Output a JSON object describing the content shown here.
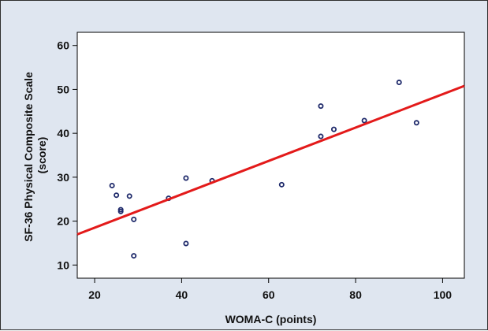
{
  "chart_data": {
    "type": "scatter",
    "title": "",
    "xlabel": "WOMA-C (points)",
    "ylabel_lines": [
      "SF-36 Physical Composite Scale",
      "(score)"
    ],
    "xlim": [
      16,
      105
    ],
    "ylim": [
      7,
      63
    ],
    "x_ticks": [
      20,
      40,
      60,
      80,
      100
    ],
    "y_ticks": [
      10,
      20,
      30,
      40,
      50,
      60
    ],
    "grid": false,
    "points": [
      {
        "x": 24,
        "y": 28.1
      },
      {
        "x": 25,
        "y": 25.9
      },
      {
        "x": 26,
        "y": 22.6
      },
      {
        "x": 26,
        "y": 22.2
      },
      {
        "x": 28,
        "y": 25.7
      },
      {
        "x": 29,
        "y": 20.4
      },
      {
        "x": 29,
        "y": 12.1
      },
      {
        "x": 37,
        "y": 25.2
      },
      {
        "x": 41,
        "y": 29.8
      },
      {
        "x": 41,
        "y": 14.9
      },
      {
        "x": 47,
        "y": 29.2
      },
      {
        "x": 63,
        "y": 28.3
      },
      {
        "x": 72,
        "y": 46.2
      },
      {
        "x": 72,
        "y": 39.3
      },
      {
        "x": 75,
        "y": 40.9
      },
      {
        "x": 82,
        "y": 42.9
      },
      {
        "x": 90,
        "y": 51.6
      },
      {
        "x": 94,
        "y": 42.4
      }
    ],
    "fit_line": {
      "slope": 0.38,
      "intercept": 10.9
    }
  },
  "colors": {
    "background": "#dfe6f0",
    "plot_background": "#ffffff",
    "marker": "#1f2a6b",
    "fit_line": "#e31a1a",
    "axis": "#000000"
  }
}
